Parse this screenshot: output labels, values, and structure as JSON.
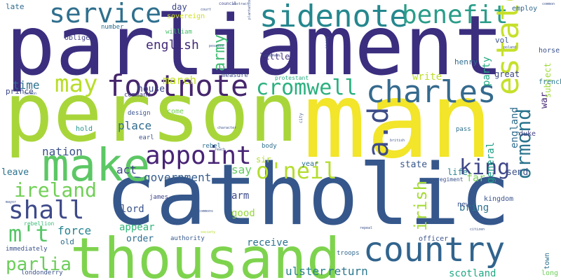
{
  "words": [
    {
      "text": "parliament",
      "color": "#3b2e7e"
    },
    {
      "text": "catholic",
      "color": "#35578b"
    },
    {
      "text": "person",
      "color": "#a8d63a"
    },
    {
      "text": "man",
      "color": "#f2e52a"
    },
    {
      "text": "thousand",
      "color": "#7ed34e"
    },
    {
      "text": "country",
      "color": "#31648d"
    },
    {
      "text": "make",
      "color": "#5cc765"
    },
    {
      "text": "sidenote",
      "color": "#25878e"
    },
    {
      "text": "benefit",
      "color": "#2a9d89"
    },
    {
      "text": "service",
      "color": "#2f6f8e"
    },
    {
      "text": "estate",
      "color": "#c6e02a"
    },
    {
      "text": "charles",
      "color": "#356a8e"
    },
    {
      "text": "footnote",
      "color": "#46266d"
    },
    {
      "text": "cromwell",
      "color": "#2bb07f"
    },
    {
      "text": "appoint",
      "color": "#482475"
    },
    {
      "text": "a.d",
      "color": "#3d4c89"
    },
    {
      "text": "o'neil",
      "color": "#b4dd2e"
    },
    {
      "text": "king",
      "color": "#3f4789"
    },
    {
      "text": "may",
      "color": "#b8de29"
    },
    {
      "text": "ireland",
      "color": "#70cf56"
    },
    {
      "text": "shall",
      "color": "#3e4a89"
    },
    {
      "text": "m't",
      "color": "#56c667"
    },
    {
      "text": "parlia",
      "color": "#6ccd5a"
    },
    {
      "text": "ormond",
      "color": "#2b758e"
    },
    {
      "text": "irish",
      "color": "#a5db36"
    },
    {
      "text": "army",
      "color": "#40bd72"
    },
    {
      "text": "english",
      "color": "#432a78"
    },
    {
      "text": "march",
      "color": "#c2df23"
    },
    {
      "text": "time",
      "color": "#2d718e"
    },
    {
      "text": "place",
      "color": "#2f6b8e"
    },
    {
      "text": "nation",
      "color": "#3b518b"
    },
    {
      "text": "act",
      "color": "#404588"
    },
    {
      "text": "government",
      "color": "#365d8d"
    },
    {
      "text": "say",
      "color": "#62cb5f"
    },
    {
      "text": "force",
      "color": "#25838e"
    },
    {
      "text": "lord",
      "color": "#3a538b"
    },
    {
      "text": "arm",
      "color": "#3e4c8a"
    },
    {
      "text": "good",
      "color": "#97d83f"
    },
    {
      "text": "receive",
      "color": "#2c738e"
    },
    {
      "text": "appear",
      "color": "#32b67a"
    },
    {
      "text": "order",
      "color": "#2f6c8e"
    },
    {
      "text": "ulster",
      "color": "#27808e"
    },
    {
      "text": "return",
      "color": "#2a788e"
    },
    {
      "text": "scotland",
      "color": "#22a884"
    },
    {
      "text": "party",
      "color": "#25ac82"
    },
    {
      "text": "write",
      "color": "#bade28"
    },
    {
      "text": "england",
      "color": "#2f6c8e"
    },
    {
      "text": "general",
      "color": "#1fa088"
    },
    {
      "text": "state",
      "color": "#38588c"
    },
    {
      "text": "send",
      "color": "#3b528b"
    },
    {
      "text": "far",
      "color": "#7ad151"
    },
    {
      "text": "bring",
      "color": "#2c728e"
    },
    {
      "text": "war",
      "color": "#482878"
    },
    {
      "text": "life",
      "color": "#26828e"
    },
    {
      "text": "house",
      "color": "#3f4889"
    },
    {
      "text": "leave",
      "color": "#2c738e"
    },
    {
      "text": "hold",
      "color": "#21918c"
    },
    {
      "text": "come",
      "color": "#74d055"
    },
    {
      "text": "old",
      "color": "#2e6d8e"
    },
    {
      "text": "subject",
      "color": "#a0da39"
    },
    {
      "text": "great",
      "color": "#3f4889"
    },
    {
      "text": "french",
      "color": "#2a788e"
    },
    {
      "text": "day",
      "color": "#3e4989"
    },
    {
      "text": "sovereign",
      "color": "#cfe11c"
    },
    {
      "text": "late",
      "color": "#2f6b8e"
    },
    {
      "text": "prince",
      "color": "#3e4989"
    },
    {
      "text": "number",
      "color": "#2e6e8e"
    },
    {
      "text": "oblige",
      "color": "#424186"
    },
    {
      "text": "william",
      "color": "#4ac16d"
    },
    {
      "text": "little",
      "color": "#46337f"
    },
    {
      "text": "henry",
      "color": "#2f6c8e"
    },
    {
      "text": "vol",
      "color": "#3b528b"
    },
    {
      "text": "employ",
      "color": "#31688e"
    },
    {
      "text": "horse",
      "color": "#3b528b"
    },
    {
      "text": "measure",
      "color": "#3e4a89"
    },
    {
      "text": "protestant",
      "color": "#29af7f"
    },
    {
      "text": "command",
      "color": "#433d84"
    },
    {
      "text": "design",
      "color": "#3a548c"
    },
    {
      "text": "earl",
      "color": "#3b518b"
    },
    {
      "text": "rebel",
      "color": "#2e6f8e"
    },
    {
      "text": "body",
      "color": "#2e6e8e"
    },
    {
      "text": "year",
      "color": "#2d708e"
    },
    {
      "text": "sir",
      "color": "#b2dd2d"
    },
    {
      "text": "duke",
      "color": "#424186"
    },
    {
      "text": "kingdom",
      "color": "#3a548c"
    },
    {
      "text": "new",
      "color": "#3b528b"
    },
    {
      "text": "officer",
      "color": "#3b528b"
    },
    {
      "text": "authority",
      "color": "#38598c"
    },
    {
      "text": "troops",
      "color": "#31688e"
    },
    {
      "text": "town",
      "color": "#2d718e"
    },
    {
      "text": "long",
      "color": "#6ece58"
    },
    {
      "text": "pass",
      "color": "#2d708e"
    },
    {
      "text": "regiment",
      "color": "#3b528b"
    },
    {
      "text": "james",
      "color": "#3f4788"
    },
    {
      "text": "rebellion",
      "color": "#3bbb75"
    },
    {
      "text": "immediately",
      "color": "#3b518b"
    },
    {
      "text": "londonderry",
      "color": "#3b528b"
    },
    {
      "text": "council",
      "color": "#3f4788"
    },
    {
      "text": "court",
      "color": "#3b528b"
    },
    {
      "text": "london",
      "color": "#3b528b"
    },
    {
      "text": "commons",
      "color": "#3b528b"
    },
    {
      "text": "citizen",
      "color": "#3b528b"
    },
    {
      "text": "enemy",
      "color": "#3e4c8a"
    },
    {
      "text": "city",
      "color": "#3b528b"
    },
    {
      "text": "character",
      "color": "#3b528b"
    },
    {
      "text": "common",
      "color": "#3b528b"
    },
    {
      "text": "reach",
      "color": "#3b528b"
    },
    {
      "text": "plantation",
      "color": "#3b528b"
    },
    {
      "text": "possess",
      "color": "#3b528b"
    },
    {
      "text": "poland",
      "color": "#3b528b"
    },
    {
      "text": "society",
      "color": "#b5de2b"
    },
    {
      "text": "congress",
      "color": "#3b528b"
    },
    {
      "text": "british",
      "color": "#3b528b"
    },
    {
      "text": "repeal",
      "color": "#3b528b"
    },
    {
      "text": "abstract",
      "color": "#3b528b"
    },
    {
      "text": "mayor",
      "color": "#3b528b"
    }
  ]
}
